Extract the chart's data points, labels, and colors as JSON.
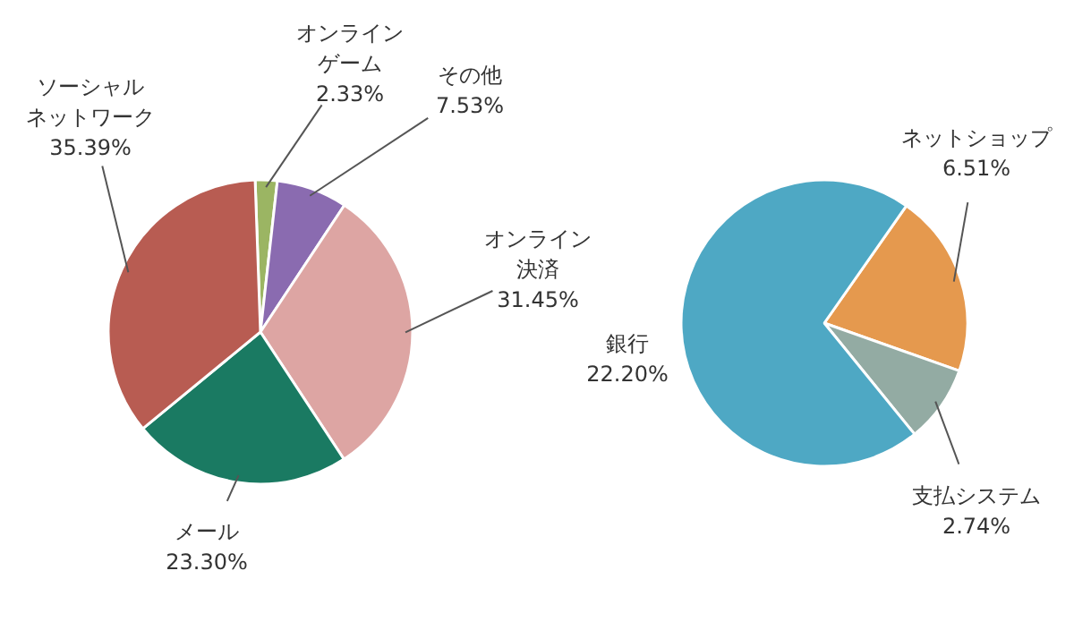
{
  "chart_data": [
    {
      "type": "pie",
      "categories": [
        "オンラインゲーム",
        "その他",
        "オンライン決済",
        "メール",
        "ソーシャルネットワーク"
      ],
      "values": [
        2.33,
        7.53,
        31.45,
        23.3,
        35.39
      ],
      "value_labels": [
        "2.33%",
        "7.53%",
        "31.45%",
        "23.30%",
        "35.39%"
      ],
      "colors": [
        "#9bb563",
        "#8a6bb0",
        "#dda5a3",
        "#1a7a62",
        "#b85c52"
      ]
    },
    {
      "type": "pie",
      "categories": [
        "ネットショップ",
        "支払システム",
        "銀行"
      ],
      "values": [
        6.51,
        2.74,
        22.2
      ],
      "value_labels": [
        "6.51%",
        "2.74%",
        "22.20%"
      ],
      "colors": [
        "#e5994e",
        "#93aba3",
        "#4ea8c4"
      ]
    }
  ]
}
